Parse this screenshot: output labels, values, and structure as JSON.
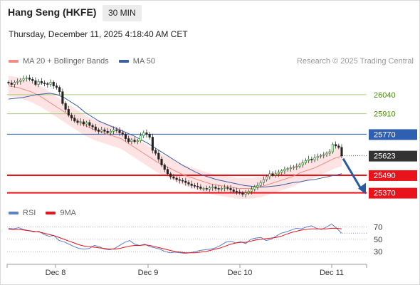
{
  "header": {
    "title": "Hang Seng (HKFE)",
    "interval": "30 MIN"
  },
  "date_label": "Thursday, December 11, 2025 4:18:40 AM CET",
  "legend_main": [
    {
      "label": "MA 20 + Bollinger Bands",
      "color": "#f28b82"
    },
    {
      "label": "MA 50",
      "color": "#3b5fa0"
    }
  ],
  "legend_rsi": [
    {
      "label": "RSI",
      "color": "#5b7fd1"
    },
    {
      "label": "9MA",
      "color": "#e8131b"
    }
  ],
  "credit": "Research © 2025 Trading Central",
  "colors": {
    "resistance": "#a8cf7a",
    "resistance_text": "#4a8a10",
    "pivot": "#2f5fb0",
    "support": "#e8131b",
    "last": "#333333",
    "arrow": "#2a5aa0",
    "bollinger_fill": "#fde3e3"
  },
  "chart_data": {
    "type": "candlestick",
    "x_ticks": [
      "Dec 8",
      "Dec 9",
      "Dec 10",
      "Dec 11"
    ],
    "ylim": [
      25300,
      26200
    ],
    "levels": [
      {
        "value": 26040,
        "label": "26040",
        "kind": "resistance"
      },
      {
        "value": 25910,
        "label": "25910",
        "kind": "resistance"
      },
      {
        "value": 25770,
        "label": "25770",
        "kind": "pivot"
      },
      {
        "value": 25623,
        "label": "25623",
        "kind": "last"
      },
      {
        "value": 25490,
        "label": "25490",
        "kind": "support"
      },
      {
        "value": 25370,
        "label": "25370",
        "kind": "support"
      }
    ],
    "closes": [
      26120,
      26110,
      26125,
      26130,
      26140,
      26150,
      26155,
      26145,
      26135,
      26110,
      26130,
      26120,
      26115,
      26110,
      26125,
      26100,
      26090,
      26060,
      25980,
      25940,
      25900,
      25880,
      25860,
      25850,
      25855,
      25840,
      25850,
      25830,
      25820,
      25800,
      25790,
      25800,
      25790,
      25780,
      25790,
      25800,
      25795,
      25780,
      25770,
      25740,
      25720,
      25730,
      25720,
      25725,
      25760,
      25780,
      25770,
      25750,
      25660,
      25640,
      25600,
      25560,
      25530,
      25500,
      25480,
      25470,
      25460,
      25455,
      25450,
      25440,
      25430,
      25420,
      25415,
      25410,
      25400,
      25400,
      25395,
      25405,
      25410,
      25400,
      25395,
      25400,
      25405,
      25400,
      25390,
      25380,
      25375,
      25370,
      25360,
      25370,
      25380,
      25395,
      25410,
      25420,
      25440,
      25460,
      25480,
      25500,
      25490,
      25500,
      25510,
      25520,
      25530,
      25535,
      25540,
      25545,
      25550,
      25560,
      25575,
      25590,
      25600,
      25595,
      25610,
      25620,
      25625,
      25630,
      25640,
      25650,
      25700,
      25690,
      25680,
      25623
    ],
    "ma20": [
      26100,
      26095,
      26090,
      26080,
      26070,
      26060,
      26045,
      26030,
      26010,
      25990,
      25970,
      25950,
      25930,
      25910,
      25890,
      25870,
      25850,
      25830,
      25815,
      25800,
      25790,
      25780,
      25770,
      25760,
      25750,
      25740,
      25720,
      25700,
      25680,
      25660,
      25640,
      25620,
      25600,
      25580,
      25565,
      25550,
      25535,
      25520,
      25505,
      25490,
      25480,
      25470,
      25460,
      25450,
      25440,
      25430,
      25425,
      25420,
      25415,
      25410,
      25405,
      25400,
      25400,
      25400,
      25400,
      25405,
      25410,
      25420,
      25430,
      25440,
      25450,
      25460,
      25470,
      25480,
      25495,
      25510,
      25520,
      25530,
      25540,
      25555,
      25570,
      25585,
      25600,
      25612,
      25620
    ],
    "ma50": [
      26010,
      26015,
      26020,
      26030,
      26040,
      26045,
      26050,
      26040,
      26020,
      25990,
      25960,
      25920,
      25890,
      25860,
      25840,
      25820,
      25800,
      25780,
      25760,
      25735,
      25710,
      25680,
      25650,
      25620,
      25590,
      25560,
      25535,
      25510,
      25490,
      25475,
      25460,
      25450,
      25440,
      25430,
      25420,
      25415,
      25410,
      25410,
      25415,
      25420,
      25430,
      25440,
      25445,
      25455,
      25460,
      25470,
      25480,
      25490,
      25500
    ],
    "rsi": [
      68,
      67,
      69,
      66,
      64,
      62,
      63,
      58,
      55,
      56,
      48,
      46,
      42,
      38,
      35,
      34,
      35,
      40,
      38,
      34,
      33,
      35,
      40,
      45,
      48,
      42,
      40,
      42,
      38,
      36,
      34,
      30,
      28,
      29,
      28,
      27,
      28,
      30,
      32,
      33,
      34,
      36,
      40,
      45,
      47,
      44,
      46,
      43,
      50,
      52,
      53,
      48,
      50,
      55,
      60,
      62,
      65,
      68,
      67,
      70,
      72,
      68,
      66,
      70,
      75,
      68,
      60
    ],
    "rsi_ma": [
      66,
      66,
      66,
      65,
      64,
      63,
      62,
      60,
      58,
      56,
      53,
      50,
      47,
      44,
      41,
      39,
      38,
      37,
      36,
      35,
      34,
      34,
      35,
      37,
      39,
      40,
      40,
      41,
      40,
      38,
      36,
      34,
      32,
      30,
      29,
      28,
      28,
      28,
      29,
      30,
      32,
      34,
      36,
      39,
      42,
      44,
      45,
      45,
      47,
      49,
      50,
      51,
      52,
      53,
      55,
      58,
      61,
      63,
      65,
      66,
      67,
      67,
      67,
      67,
      68,
      68,
      67
    ],
    "rsi_levels": [
      70,
      50,
      30
    ],
    "rsi_ylim": [
      15,
      80
    ]
  }
}
